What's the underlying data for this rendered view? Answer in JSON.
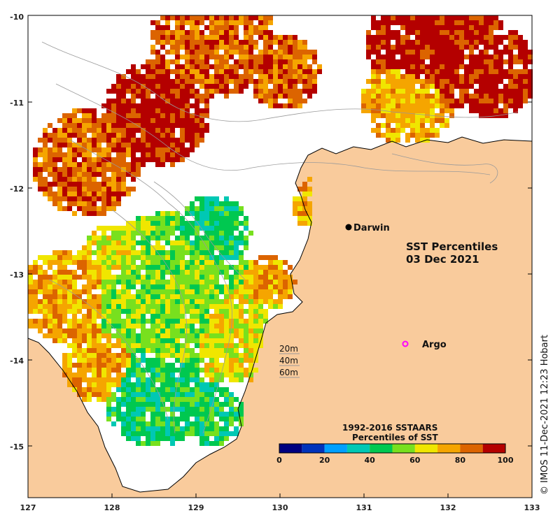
{
  "map": {
    "title_line1": "SST Percentiles",
    "title_line2": "03 Dec 2021",
    "credit": "© IMOS 11-Dec-2021 12:23 Hobart",
    "colors": {
      "land": "#f9cb9c",
      "nodata": "#ffffff",
      "bathymetry": "#9a9a9a",
      "coast": "#000000"
    },
    "x_ticks": [
      "127",
      "128",
      "129",
      "130",
      "131",
      "132",
      "133"
    ],
    "y_ticks": [
      "-10",
      "-11",
      "-12",
      "-13",
      "-14",
      "-15"
    ],
    "places": [
      {
        "name": "Darwin",
        "marker": "filled-circle",
        "color": "#000000"
      },
      {
        "name": "Argo",
        "marker": "open-circle",
        "color": "#ff00ff"
      }
    ],
    "depth_contours": [
      "20m",
      "40m",
      "60m"
    ]
  },
  "legend": {
    "title_line1": "1992-2016 SSTAARS",
    "title_line2": "Percentiles of SST",
    "ticks": [
      "0",
      "20",
      "40",
      "60",
      "80",
      "100"
    ],
    "colors": [
      "#000080",
      "#0033bb",
      "#00a0ff",
      "#00c8b4",
      "#00c850",
      "#78e01e",
      "#f0e600",
      "#f5a500",
      "#dc6400",
      "#b40000"
    ]
  }
}
